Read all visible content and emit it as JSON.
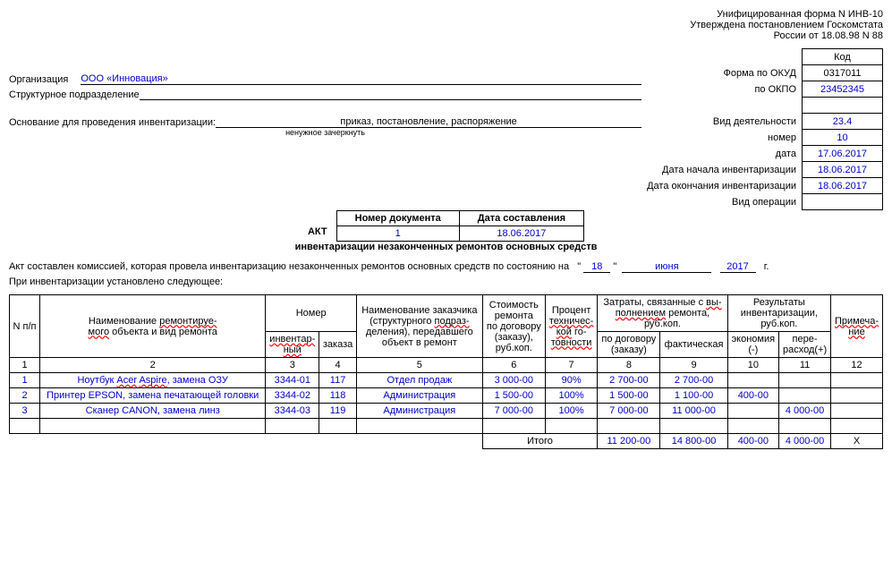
{
  "header": {
    "line1": "Унифицированная форма N ИНВ-10",
    "line2": "Утверждена постановлением Госкомстата",
    "line3": "России от 18.08.98 N 88"
  },
  "codebox": {
    "kod_header": "Код",
    "okud_label": "Форма по ОКУД",
    "okud_value": "0317011",
    "okpo_label": "по ОКПО",
    "okpo_value": "23452345",
    "activity_label": "Вид деятельности",
    "activity_value": "23.4",
    "number_label": "номер",
    "number_value": "10",
    "date_label": "дата",
    "date_value": "17.06.2017",
    "inv_start_label": "Дата начала инвентаризации",
    "inv_start_value": "18.06.2017",
    "inv_end_label": "Дата окончания инвентаризации",
    "inv_end_value": "18.06.2017",
    "op_type_label": "Вид операции"
  },
  "org": {
    "label": "Организация",
    "value": "ООО «Инновация»",
    "dept_label": "Структурное подразделение",
    "basis_label": "Основание для проведения инвентаризации:",
    "basis_value": "приказ, постановление, распоряжение",
    "strike_note": "ненужное зачеркнуть"
  },
  "doc": {
    "akt": "АКТ",
    "subtitle": "инвентаризации незаконченных ремонтов основных средств",
    "doc_num_label": "Номер документа",
    "doc_num_value": "1",
    "doc_date_label": "Дата составления",
    "doc_date_value": "18.06.2017"
  },
  "note": {
    "line1_pre": "Акт составлен комиссией, которая провела инвентаризацию незаконченных ремонтов основных средств по состоянию на",
    "day": "18",
    "month": "июня",
    "year": "2017",
    "suffix": "г.",
    "line2": "При инвентаризации установлено следующее:",
    "quot": "\""
  },
  "table": {
    "headers": {
      "npp": "N п/п",
      "name": "Наименование ремонтируе-мого объекта и вид ремонта",
      "name_sq": [
        "ремонтируе-",
        "мого"
      ],
      "number": "Номер",
      "inv": "инвентар-ный",
      "inv_sq": [
        "инвентар-",
        "ный"
      ],
      "order": "заказа",
      "customer": "Наименование заказчика (структурного подраз-деления), передавшего объект в ремонт",
      "customer_sq": "подраз-",
      "cost": "Стоимость ремонта по договору (заказу), руб.коп.",
      "percent": "Процент техничес-кой го-товности",
      "percent_sq": [
        "техничес-",
        "кой",
        "товности"
      ],
      "expenses": "Затраты, связанные с вы-полнением ремонта, руб.коп.",
      "expenses_sq": [
        "вы-",
        "полнением"
      ],
      "by_contract": "по договору (заказу)",
      "actual": "фактическая",
      "results": "Результаты инвентаризации, руб.коп.",
      "economy": "экономия (-)",
      "overrun": "пере-расход(+)",
      "notes": "Примеча-ние",
      "notes_sq": [
        "Примеча-",
        "ние"
      ]
    },
    "colnums": [
      "1",
      "2",
      "3",
      "4",
      "5",
      "6",
      "7",
      "8",
      "9",
      "10",
      "11",
      "12"
    ],
    "rows": [
      {
        "n": "1",
        "name": "Ноутбук Acer Aspire, замена ОЗУ",
        "inv": "3344-01",
        "ord": "117",
        "cust": "Отдел продаж",
        "cost": "3 000-00",
        "pct": "90%",
        "contr": "2 700-00",
        "fact": "2 700-00",
        "eco": "",
        "over": "",
        "note": ""
      },
      {
        "n": "2",
        "name": "Принтер EPSON, замена печатающей головки",
        "inv": "3344-02",
        "ord": "118",
        "cust": "Администрация",
        "cost": "1 500-00",
        "pct": "100%",
        "contr": "1 500-00",
        "fact": "1 100-00",
        "eco": "400-00",
        "over": "",
        "note": ""
      },
      {
        "n": "3",
        "name": "Сканер CANON, замена линз",
        "inv": "3344-03",
        "ord": "119",
        "cust": "Администрация",
        "cost": "7 000-00",
        "pct": "100%",
        "contr": "7 000-00",
        "fact": "11 000-00",
        "eco": "",
        "over": "4 000-00",
        "note": ""
      }
    ],
    "totals": {
      "label": "Итого",
      "c8": "11 200-00",
      "c9": "14 800-00",
      "c10": "400-00",
      "c11": "4 000-00",
      "c12": "X"
    }
  }
}
